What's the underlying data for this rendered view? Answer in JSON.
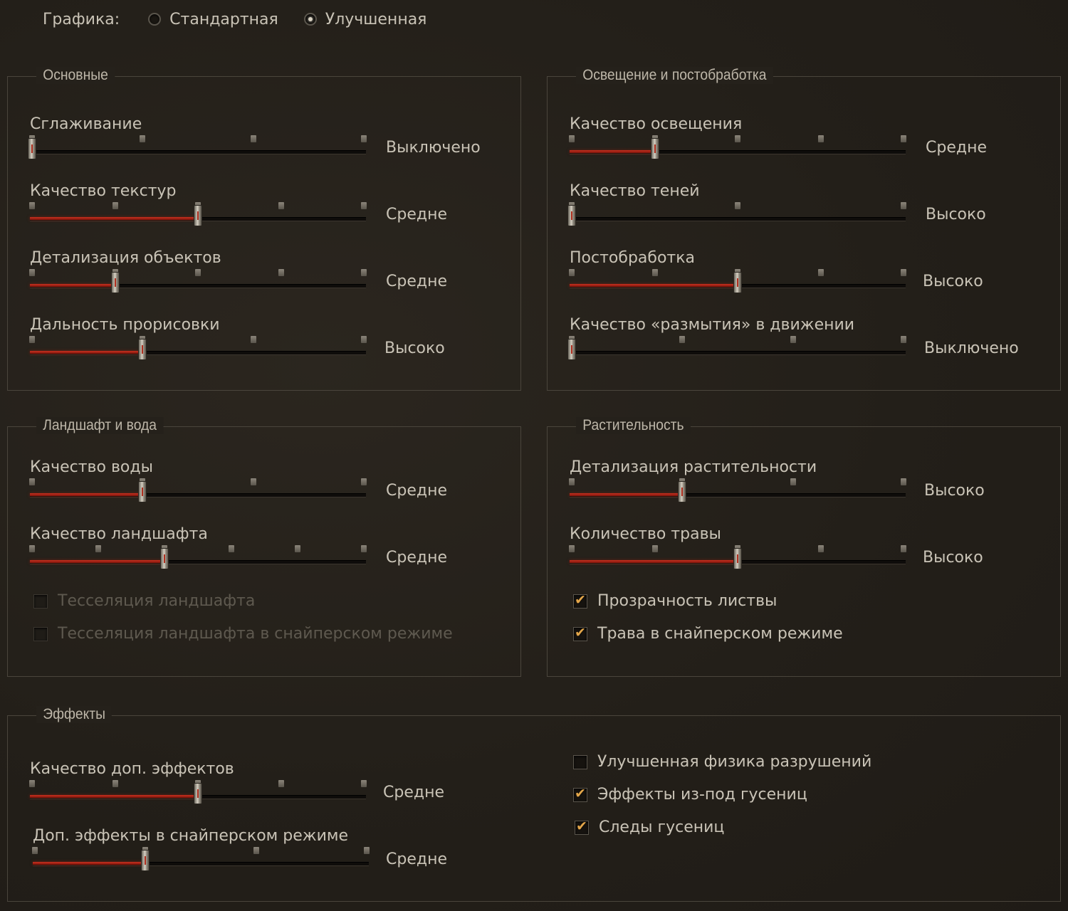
{
  "graphics": {
    "label": "Графика:",
    "opt_standard": "Стандартная",
    "opt_improved": "Улучшенная",
    "selected": "Улучшенная"
  },
  "basic": {
    "title": "Основные",
    "sliders": [
      {
        "label": "Сглаживание",
        "value": "Выключено",
        "steps": 4,
        "position": 0
      },
      {
        "label": "Качество текстур",
        "value": "Средне",
        "steps": 5,
        "position": 2
      },
      {
        "label": "Детализация объектов",
        "value": "Средне",
        "steps": 5,
        "position": 1
      },
      {
        "label": "Дальность прорисовки",
        "value": "Высоко",
        "steps": 4,
        "position": 1
      }
    ]
  },
  "lighting": {
    "title": "Освещение и постобработка",
    "sliders": [
      {
        "label": "Качество освещения",
        "value": "Средне",
        "steps": 5,
        "position": 1
      },
      {
        "label": "Качество теней",
        "value": "Высоко",
        "steps": 3,
        "position": 0
      },
      {
        "label": "Постобработка",
        "value": "Высоко",
        "steps": 5,
        "position": 2
      },
      {
        "label": "Качество «размытия» в движении",
        "value": "Выключено",
        "steps": 4,
        "position": 0
      }
    ]
  },
  "landscape": {
    "title": "Ландшафт и вода",
    "sliders": [
      {
        "label": "Качество воды",
        "value": "Средне",
        "steps": 4,
        "position": 1
      },
      {
        "label": "Качество ландшафта",
        "value": "Средне",
        "steps": 6,
        "position": 2
      }
    ],
    "checks": [
      {
        "label": "Тесселяция ландшафта",
        "checked": false,
        "disabled": true
      },
      {
        "label": "Тесселяция ландшафта в снайперском режиме",
        "checked": false,
        "disabled": true
      }
    ]
  },
  "vegetation": {
    "title": "Растительность",
    "sliders": [
      {
        "label": "Детализация растительности",
        "value": "Высоко",
        "steps": 4,
        "position": 1
      },
      {
        "label": "Количество травы",
        "value": "Высоко",
        "steps": 5,
        "position": 2
      }
    ],
    "checks": [
      {
        "label": "Прозрачность листвы",
        "checked": true,
        "disabled": false
      },
      {
        "label": "Трава в снайперском режиме",
        "checked": true,
        "disabled": false
      }
    ]
  },
  "effects": {
    "title": "Эффекты",
    "sliders": [
      {
        "label": "Качество доп. эффектов",
        "value": "Средне",
        "steps": 5,
        "position": 2
      },
      {
        "label": "Доп. эффекты в снайперском режиме",
        "value": "Средне",
        "steps": 4,
        "position": 1
      }
    ],
    "checks": [
      {
        "label": "Улучшенная физика разрушений",
        "checked": false,
        "disabled": false
      },
      {
        "label": "Эффекты из-под гусениц",
        "checked": true,
        "disabled": false
      },
      {
        "label": "Следы гусениц",
        "checked": true,
        "disabled": false
      }
    ]
  },
  "colors": {
    "accent_red": "#c9301f",
    "check_mark": "#e3a64a",
    "text": "#c9c3b6"
  }
}
